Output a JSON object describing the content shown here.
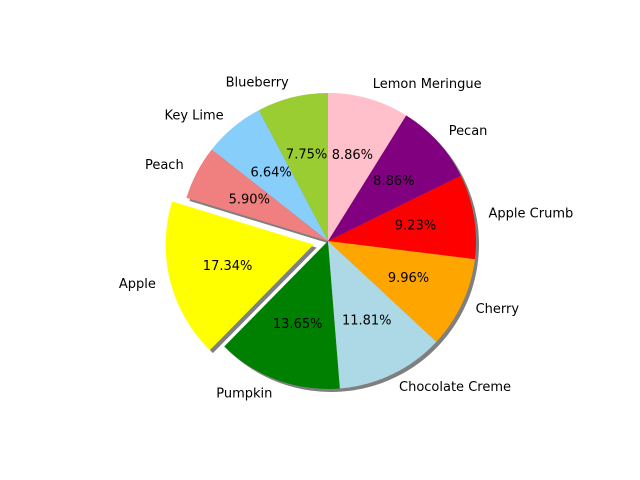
{
  "chart_data": {
    "type": "pie",
    "start_angle_deg": 90,
    "direction": "counterclockwise",
    "shadow": true,
    "slices": [
      {
        "label": "Blueberry",
        "value": 7.75,
        "pct_label": "7.75%",
        "color": "#9acd32",
        "explode": false
      },
      {
        "label": "Key Lime",
        "value": 6.64,
        "pct_label": "6.64%",
        "color": "#87cefa",
        "explode": false
      },
      {
        "label": "Peach",
        "value": 5.9,
        "pct_label": "5.90%",
        "color": "#f08080",
        "explode": false
      },
      {
        "label": "Apple",
        "value": 17.34,
        "pct_label": "17.34%",
        "color": "#ffff00",
        "explode": true
      },
      {
        "label": "Pumpkin",
        "value": 13.65,
        "pct_label": "13.65%",
        "color": "#008000",
        "explode": false
      },
      {
        "label": "Chocolate Creme",
        "value": 11.81,
        "pct_label": "11.81%",
        "color": "#add8e6",
        "explode": false
      },
      {
        "label": "Cherry",
        "value": 9.96,
        "pct_label": "9.96%",
        "color": "#ffa500",
        "explode": false
      },
      {
        "label": "Apple Crumb",
        "value": 9.23,
        "pct_label": "9.23%",
        "color": "#ff0000",
        "explode": false
      },
      {
        "label": "Pecan",
        "value": 8.86,
        "pct_label": "8.86%",
        "color": "#800080",
        "explode": false
      },
      {
        "label": "Lemon Meringue",
        "value": 8.86,
        "pct_label": "8.86%",
        "color": "#ffc0cb",
        "explode": false
      }
    ]
  }
}
